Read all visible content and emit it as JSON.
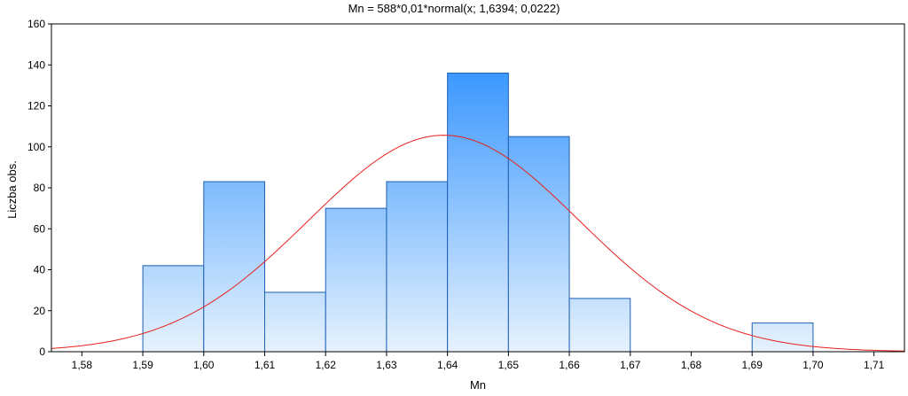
{
  "chart_data": {
    "type": "bar",
    "title": "Mn = 588*0,01*normal(x; 1,6394; 0,0222)",
    "xlabel": "Mn",
    "ylabel": "Liczba obs.",
    "xlim": [
      1.575,
      1.715
    ],
    "ylim": [
      0,
      160
    ],
    "x_ticks": [
      1.58,
      1.59,
      1.6,
      1.61,
      1.62,
      1.63,
      1.64,
      1.65,
      1.66,
      1.67,
      1.68,
      1.69,
      1.7,
      1.71
    ],
    "x_tick_labels": [
      "1,58",
      "1,59",
      "1,60",
      "1,61",
      "1,62",
      "1,63",
      "1,64",
      "1,65",
      "1,66",
      "1,67",
      "1,68",
      "1,69",
      "1,70",
      "1,71"
    ],
    "y_ticks": [
      0,
      20,
      40,
      60,
      80,
      100,
      120,
      140,
      160
    ],
    "y_tick_labels": [
      "0",
      "20",
      "40",
      "60",
      "80",
      "100",
      "120",
      "140",
      "160"
    ],
    "bins": [
      {
        "from": 1.59,
        "to": 1.6,
        "count": 42
      },
      {
        "from": 1.6,
        "to": 1.61,
        "count": 83
      },
      {
        "from": 1.61,
        "to": 1.62,
        "count": 29
      },
      {
        "from": 1.62,
        "to": 1.63,
        "count": 70
      },
      {
        "from": 1.63,
        "to": 1.64,
        "count": 83
      },
      {
        "from": 1.64,
        "to": 1.65,
        "count": 136
      },
      {
        "from": 1.65,
        "to": 1.66,
        "count": 105
      },
      {
        "from": 1.66,
        "to": 1.67,
        "count": 26
      },
      {
        "from": 1.69,
        "to": 1.7,
        "count": 14
      }
    ],
    "fit_curve": {
      "type": "normal",
      "n": 588,
      "bin_width": 0.01,
      "mean": 1.6394,
      "sd": 0.0222,
      "color": "#e8201c"
    },
    "bar_gradient": {
      "top": "#1e88ff",
      "bottom": "#e6f2fd"
    },
    "bar_edge_color": "#1f5fb4",
    "grid": false,
    "legend": "none"
  }
}
